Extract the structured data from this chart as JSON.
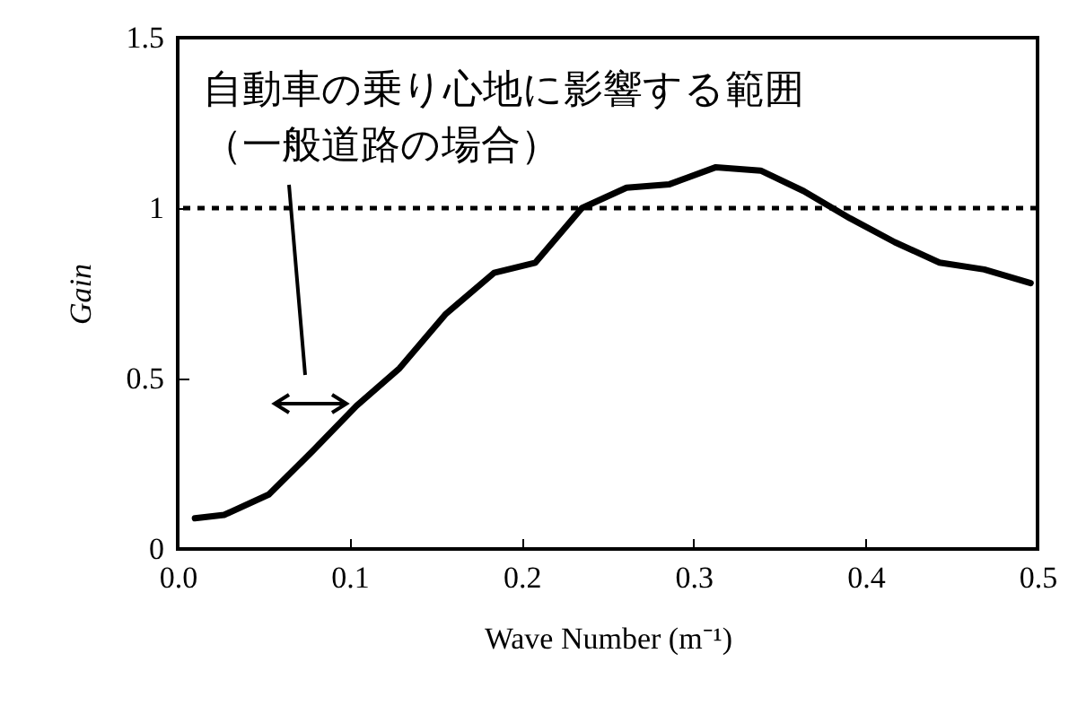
{
  "chart_data": {
    "type": "line",
    "xlabel": "Wave Number (m⁻¹)",
    "ylabel": "Gain",
    "x": [
      0.01,
      0.027,
      0.053,
      0.079,
      0.104,
      0.129,
      0.156,
      0.184,
      0.208,
      0.235,
      0.261,
      0.286,
      0.313,
      0.339,
      0.364,
      0.391,
      0.417,
      0.443,
      0.469,
      0.496
    ],
    "series": [
      {
        "color": "#000000",
        "values": [
          0.09,
          0.1,
          0.16,
          0.29,
          0.42,
          0.53,
          0.69,
          0.81,
          0.84,
          1.0,
          1.06,
          1.07,
          1.12,
          1.11,
          1.05,
          0.97,
          0.9,
          0.84,
          0.82,
          0.78
        ]
      }
    ],
    "xlim": [
      0,
      0.5
    ],
    "xticks": [
      {
        "value": 0,
        "label": "0.0"
      },
      0.1,
      0.2,
      0.3,
      0.4,
      0.5
    ],
    "ylim": [
      0,
      1.5
    ],
    "yticks": [
      0,
      0.5,
      1,
      1.5
    ],
    "ref_lines": [
      {
        "axis": "y",
        "value": 1,
        "line_style": "dotted",
        "color": "#000000"
      }
    ],
    "annotations": [
      "自動車の乗り心地に影響する範囲（一般道路の場合）"
    ],
    "grid": false,
    "marker": "none",
    "line_style": "solid"
  }
}
